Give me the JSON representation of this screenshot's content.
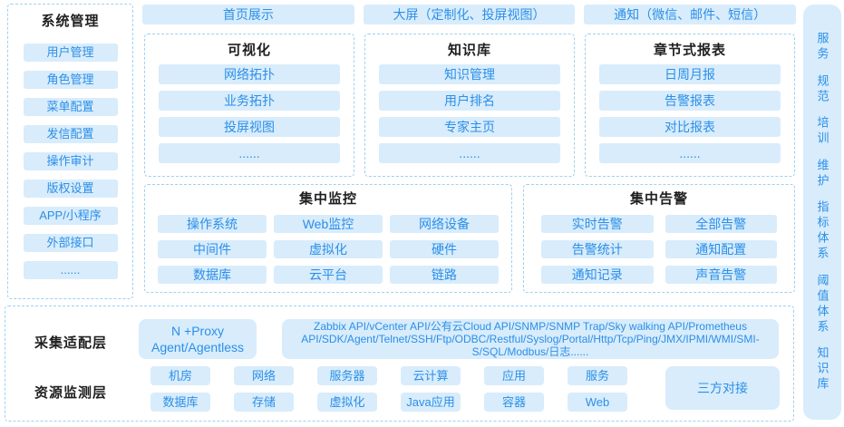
{
  "colors": {
    "accent_blue": "#2b8fe9",
    "tile_background": "#d8ecfb",
    "dashed_border": "#9dd1f2",
    "title_text": "#1f1f1f"
  },
  "left_panel": {
    "title": "系统管理",
    "items": [
      "用户管理",
      "角色管理",
      "菜单配置",
      "发信配置",
      "操作审计",
      "版权设置",
      "APP/小程序",
      "外部接口",
      "......"
    ]
  },
  "top_row": {
    "items": [
      "首页展示",
      "大屏（定制化、投屏视图）",
      "通知（微信、邮件、短信）"
    ]
  },
  "feature_boxes": [
    {
      "title": "可视化",
      "items": [
        "网络拓扑",
        "业务拓扑",
        "投屏视图",
        "......"
      ]
    },
    {
      "title": "知识库",
      "items": [
        "知识管理",
        "用户排名",
        "专家主页",
        "......"
      ]
    },
    {
      "title": "章节式报表",
      "items": [
        "日周月报",
        "告警报表",
        "对比报表",
        "......"
      ]
    }
  ],
  "monitoring": {
    "title": "集中监控",
    "items": [
      "操作系统",
      "Web监控",
      "网络设备",
      "中间件",
      "虚拟化",
      "硬件",
      "数据库",
      "云平台",
      "链路"
    ]
  },
  "alerting": {
    "title": "集中告警",
    "items": [
      "实时告警",
      "全部告警",
      "告警统计",
      "通知配置",
      "通知记录",
      "声音告警"
    ]
  },
  "bottom_panel": {
    "adapter_label": "采集适配层",
    "proxy_tile": "N +Proxy Agent/Agentless",
    "api_tile": "Zabbix API/vCenter API/公有云Cloud API/SNMP/SNMP Trap/Sky walking API/Prometheus API/SDK/Agent/Telnet/SSH/Ftp/ODBC/Restful/Syslog/Portal/Http/Tcp/Ping/JMX/IPMI/WMI/SMI-S/SQL/Modbus/日志......",
    "resource_label": "资源监测层",
    "resource_row1": [
      "机房",
      "网络",
      "服务器",
      "云计算",
      "应用",
      "服务"
    ],
    "resource_row2": [
      "数据库",
      "存储",
      "虚拟化",
      "Java应用",
      "容器",
      "Web"
    ],
    "third_party_tile": "三方对接"
  },
  "right_panel": {
    "items": [
      "服务",
      "规范",
      "培训",
      "维护",
      "指标体系",
      "阈值体系",
      "知识库"
    ]
  }
}
